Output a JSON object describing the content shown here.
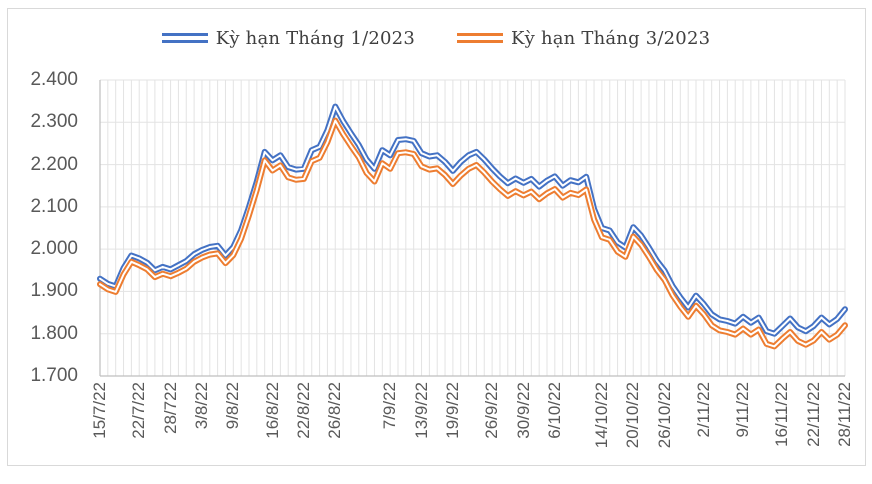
{
  "chart": {
    "legend": [
      {
        "label": "Kỳ hạn Tháng 1/2023",
        "color": "#4472C4"
      },
      {
        "label": "Kỳ hạn Tháng 3/2023",
        "color": "#ED7D31"
      }
    ]
  },
  "colors": {
    "gridline": "#E3E3E3",
    "axis_line": "#BFBFBF",
    "frame_border": "#D9D9D9",
    "axis_text": "#595959",
    "legend_text": "#3F3F3F",
    "series_gap_stripe": "#FFFFFF"
  },
  "chart_data": {
    "type": "line",
    "title": "",
    "legend_position": "top",
    "grid": {
      "horizontal": true,
      "vertical": true
    },
    "ylim": [
      1700,
      2400
    ],
    "y_ticks": [
      2400,
      2300,
      2200,
      2100,
      2000,
      1900,
      1800,
      1700
    ],
    "y_tick_labels": [
      "2.400",
      "2.300",
      "2.200",
      "2.100",
      "2.000",
      "1.900",
      "1.800",
      "1.700"
    ],
    "n_points": 96,
    "x_axis_labels": [
      "15/7/22",
      "22/7/22",
      "28/722",
      "3/8/22",
      "9/8/22",
      "16/8/22",
      "22/8/22",
      "26/8/22",
      "7/9/22",
      "13/9/22",
      "19/9/22",
      "26/9/22",
      "30/9/22",
      "6/10/22",
      "14/10/22",
      "20/10/22",
      "26/10/22",
      "2/11/22",
      "9/11/22",
      "16/11/22",
      "22/11/22",
      "28/11/22"
    ],
    "x_label_point_indices": [
      0,
      5,
      9,
      13,
      17,
      22,
      26,
      30,
      37,
      41,
      45,
      50,
      54,
      58,
      64,
      68,
      72,
      77,
      82,
      87,
      91,
      95
    ],
    "line_style": "double",
    "series": [
      {
        "name": "Kỳ hạn Tháng 1/2023",
        "color": "#4472C4",
        "values": [
          1930,
          1918,
          1912,
          1955,
          1985,
          1978,
          1968,
          1950,
          1958,
          1952,
          1962,
          1972,
          1988,
          1998,
          2005,
          2008,
          1985,
          2005,
          2045,
          2100,
          2160,
          2230,
          2210,
          2222,
          2194,
          2188,
          2190,
          2234,
          2242,
          2281,
          2337,
          2303,
          2274,
          2246,
          2212,
          2190,
          2234,
          2222,
          2258,
          2260,
          2256,
          2227,
          2219,
          2222,
          2206,
          2185,
          2206,
          2222,
          2230,
          2212,
          2191,
          2172,
          2156,
          2167,
          2157,
          2166,
          2148,
          2162,
          2172,
          2150,
          2163,
          2158,
          2171,
          2095,
          2050,
          2044,
          2016,
          2004,
          2052,
          2032,
          2004,
          1973,
          1949,
          1913,
          1886,
          1862,
          1890,
          1870,
          1846,
          1834,
          1830,
          1824,
          1840,
          1826,
          1838,
          1806,
          1800,
          1818,
          1836,
          1815,
          1806,
          1818,
          1838,
          1822,
          1835,
          1858
        ]
      },
      {
        "name": "Kỳ hạn Tháng 3/2023",
        "color": "#ED7D31",
        "values": [
          1917,
          1905,
          1899,
          1940,
          1970,
          1962,
          1952,
          1934,
          1942,
          1936,
          1944,
          1954,
          1970,
          1980,
          1987,
          1990,
          1967,
          1986,
          2025,
          2080,
          2140,
          2210,
          2186,
          2198,
          2170,
          2164,
          2166,
          2208,
          2216,
          2253,
          2304,
          2272,
          2244,
          2217,
          2180,
          2160,
          2203,
          2190,
          2227,
          2229,
          2225,
          2196,
          2188,
          2191,
          2175,
          2154,
          2174,
          2190,
          2199,
          2181,
          2160,
          2142,
          2126,
          2137,
          2127,
          2136,
          2118,
          2132,
          2142,
          2122,
          2133,
          2128,
          2141,
          2070,
          2028,
          2022,
          1994,
          1982,
          2030,
          2010,
          1982,
          1951,
          1927,
          1891,
          1864,
          1840,
          1866,
          1846,
          1820,
          1808,
          1804,
          1798,
          1812,
          1798,
          1810,
          1776,
          1770,
          1788,
          1804,
          1783,
          1774,
          1784,
          1804,
          1786,
          1798,
          1820
        ]
      }
    ]
  }
}
